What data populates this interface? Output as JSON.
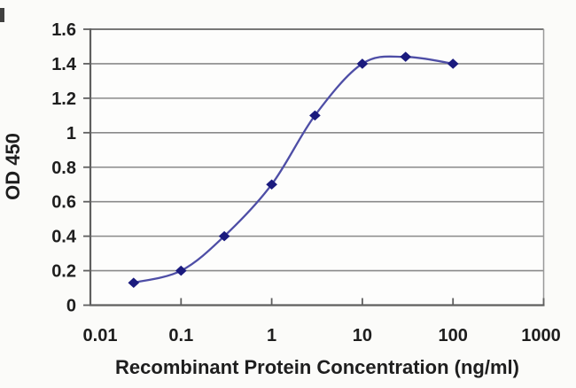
{
  "chart_data": {
    "type": "line",
    "title": "",
    "xlabel": "Recombinant Protein Concentration (ng/ml)",
    "ylabel": "OD 450",
    "x_scale": "log",
    "xlim": [
      0.01,
      1000
    ],
    "ylim": [
      0,
      1.6
    ],
    "x_ticks": [
      "0.01",
      "0.1",
      "1",
      "10",
      "100",
      "1000"
    ],
    "x_tick_values": [
      0.01,
      0.1,
      1,
      10,
      100,
      1000
    ],
    "y_ticks": [
      "0",
      "0.2",
      "0.4",
      "0.6",
      "0.8",
      "1",
      "1.2",
      "1.4",
      "1.6"
    ],
    "y_tick_values": [
      0,
      0.2,
      0.4,
      0.6,
      0.8,
      1,
      1.2,
      1.4,
      1.6
    ],
    "grid": "horizontal-only",
    "legend": "none",
    "series": [
      {
        "name": "OD 450",
        "marker": "diamond",
        "line_color": "#4e4ea6",
        "marker_color": "#1b1b7e",
        "x": [
          0.03,
          0.1,
          0.3,
          1,
          3,
          10,
          30,
          100
        ],
        "y": [
          0.13,
          0.2,
          0.4,
          0.7,
          1.1,
          1.4,
          1.44,
          1.4
        ]
      }
    ]
  },
  "colors": {
    "grid": "#8a8a8a",
    "axis": "#5f5f5f",
    "right_border": "#999999",
    "top_border": "#777777",
    "background": "#fbfbf9",
    "plot_background": "#fdfdfc",
    "text": "#1e1e1e"
  }
}
